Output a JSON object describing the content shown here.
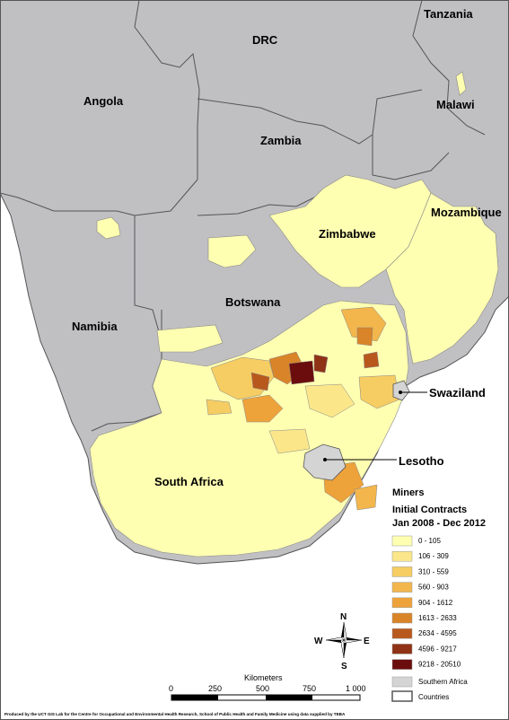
{
  "map": {
    "country_labels": {
      "tanzania": "Tanzania",
      "drc": "DRC",
      "angola": "Angola",
      "malawi": "Malawi",
      "zambia": "Zambia",
      "mozambique": "Mozambique",
      "zimbabwe": "Zimbabwe",
      "botswana": "Botswana",
      "namibia": "Namibia",
      "south_africa": "South Africa"
    },
    "callout_labels": {
      "swaziland": "Swaziland",
      "lesotho": "Lesotho"
    }
  },
  "legend": {
    "title_1": "Miners",
    "title_2": "Initial Contracts",
    "title_3": "Jan 2008 - Dec 2012",
    "classes": [
      {
        "label": "0 - 105",
        "color": "#ffffb2"
      },
      {
        "label": "106 - 309",
        "color": "#fbe78a"
      },
      {
        "label": "310 - 559",
        "color": "#f6cd63"
      },
      {
        "label": "560 - 903",
        "color": "#f2b64c"
      },
      {
        "label": "904 - 1612",
        "color": "#eea23a"
      },
      {
        "label": "1613 - 2633",
        "color": "#d98428"
      },
      {
        "label": "2634 - 4595",
        "color": "#b9581d"
      },
      {
        "label": "4596 - 9217",
        "color": "#8f3216"
      },
      {
        "label": "9218 - 20510",
        "color": "#6b0d0d"
      }
    ],
    "southern_africa": {
      "label": "Southern Africa",
      "color": "#d4d4d4"
    },
    "countries": {
      "label": "Countries",
      "color": "#ffffff"
    }
  },
  "compass": {
    "n": "N",
    "s": "S",
    "e": "E",
    "w": "W"
  },
  "scale_bar": {
    "title": "Kilometers",
    "ticks": [
      "0",
      "250",
      "500",
      "750",
      "1 000"
    ]
  },
  "credit": "Produced by the UCT GIS Lab for the Centre for Occupational and Environmental Health Research, School of Public Health and Family Medicine using data supplied by TEBA",
  "colors": {
    "other_countries": "#c0c0c3",
    "background_water": "#ffffff",
    "border": "#555555"
  }
}
